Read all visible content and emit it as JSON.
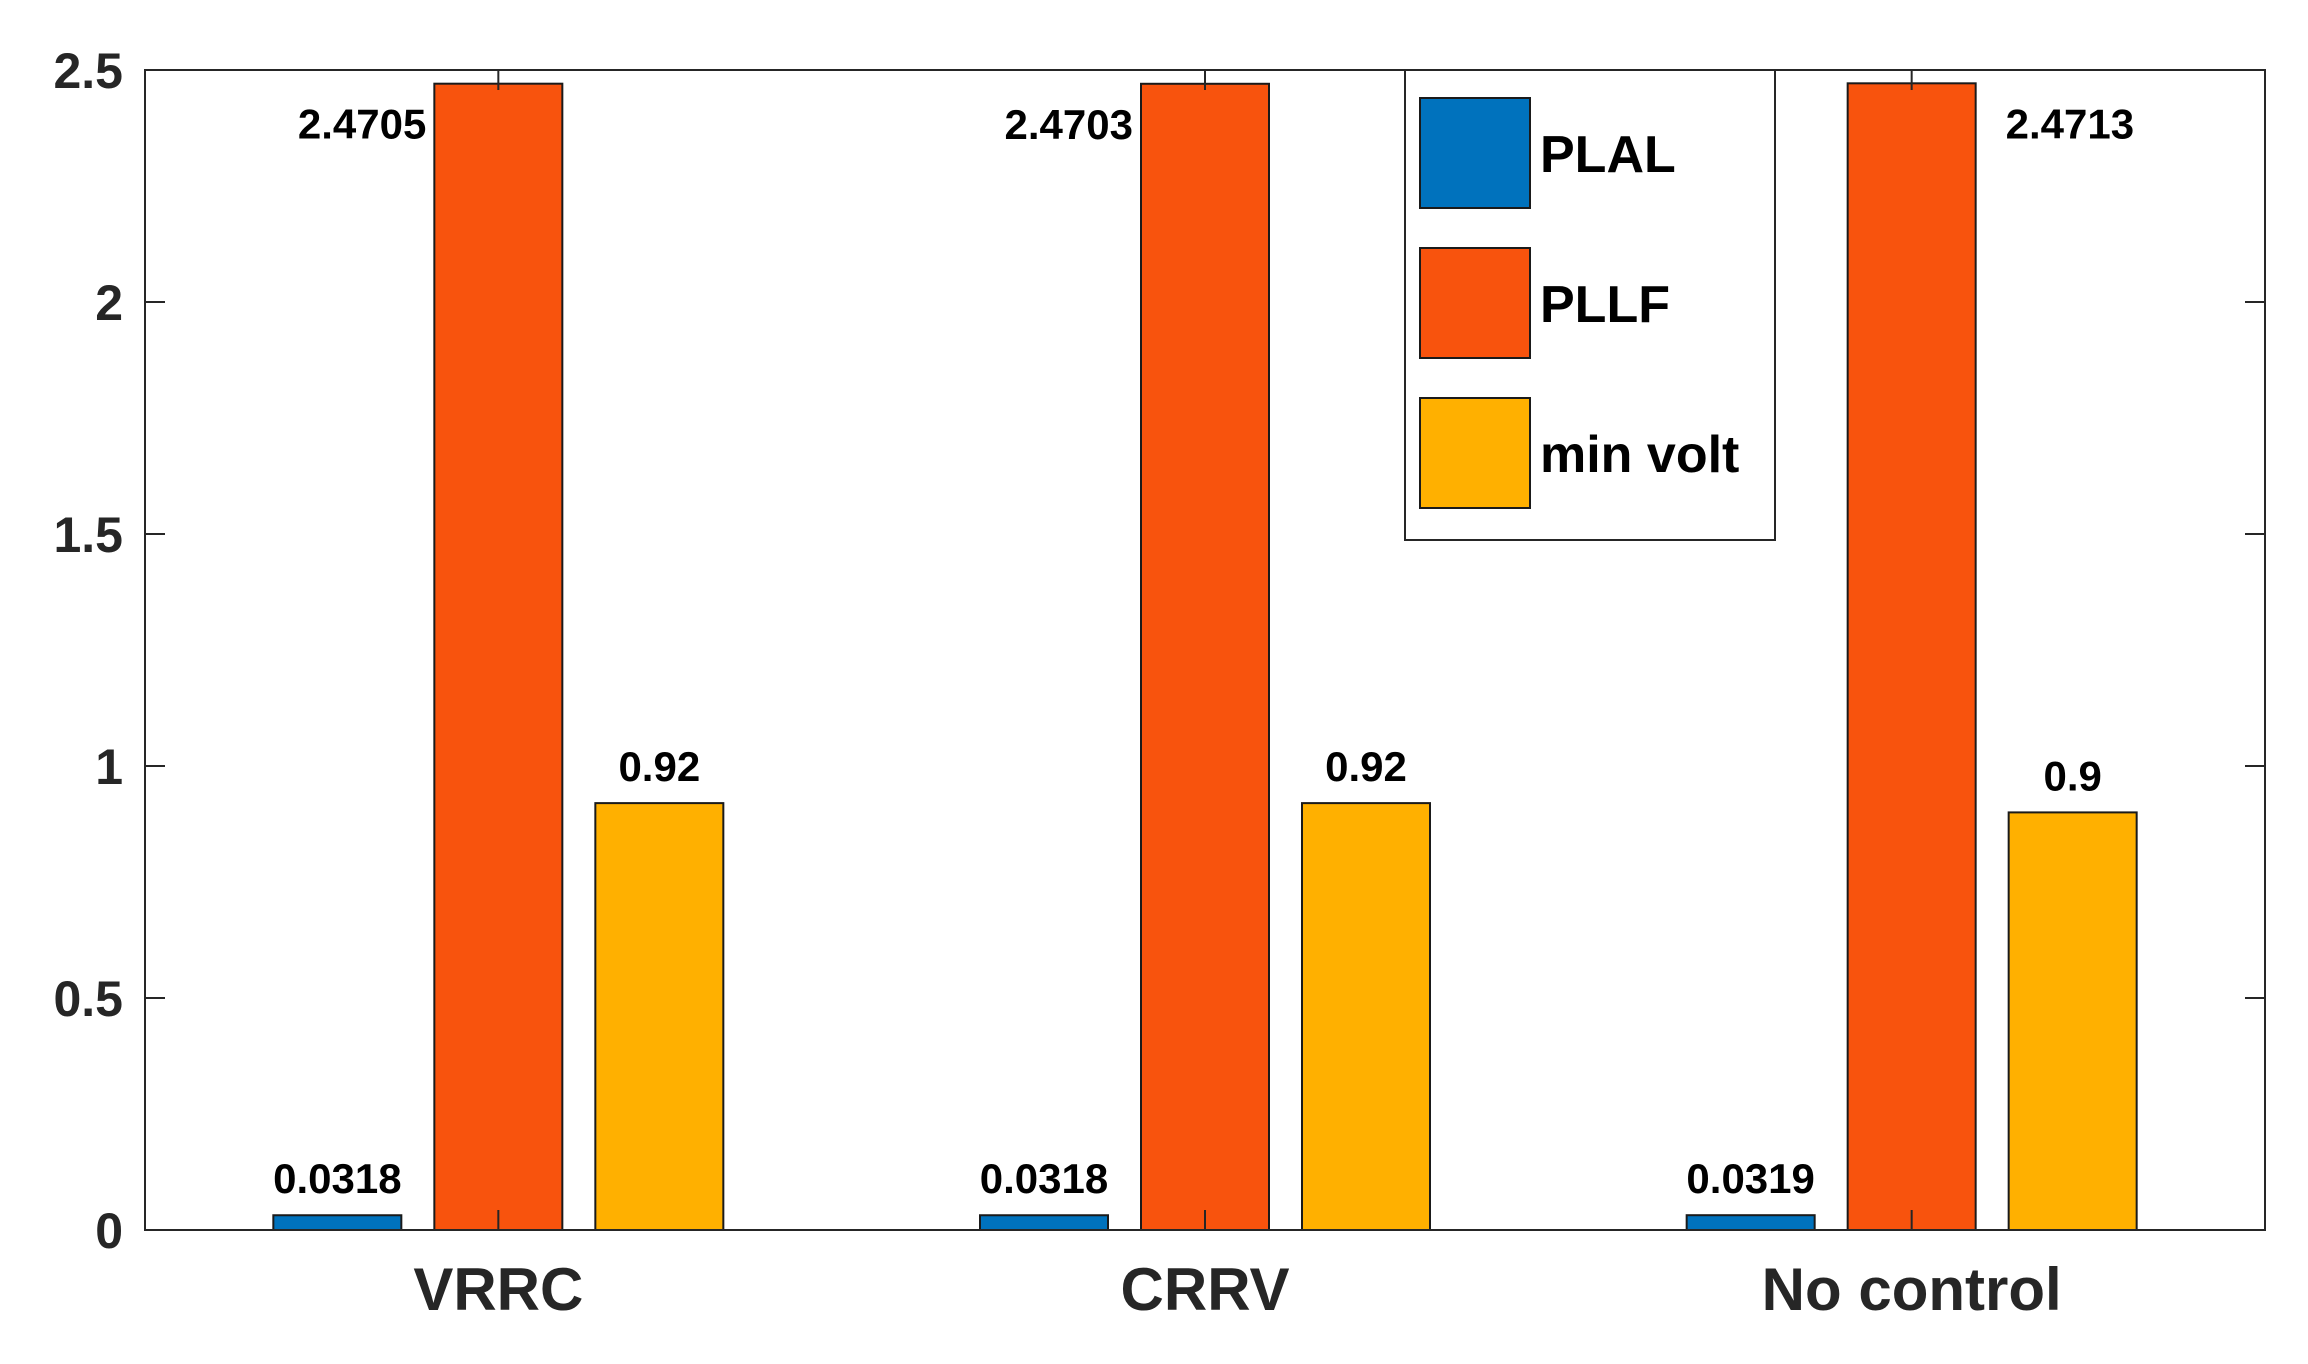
{
  "chart_data": {
    "type": "bar",
    "title": "",
    "xlabel": "",
    "ylabel": "",
    "ylim": [
      0,
      2.5
    ],
    "yticks": [
      "0",
      "0.5",
      "1",
      "1.5",
      "2",
      "2.5"
    ],
    "categories": [
      "VRRC",
      "CRRV",
      "No control"
    ],
    "series": [
      {
        "name": "PLAL",
        "color": "#0072BD",
        "values": [
          0.0318,
          0.0318,
          0.0319
        ],
        "labels": [
          "0.0318",
          "0.0318",
          "0.0319"
        ]
      },
      {
        "name": "PLLF",
        "color": "#F8530D",
        "values": [
          2.4705,
          2.4703,
          2.4713
        ],
        "labels": [
          "2.4705",
          "2.4703",
          "2.4713"
        ]
      },
      {
        "name": "min volt",
        "color": "#FFB000",
        "values": [
          0.92,
          0.92,
          0.9
        ],
        "labels": [
          "0.92",
          "0.92",
          "0.9"
        ]
      }
    ],
    "legend_position": "top-right",
    "grid": false
  }
}
